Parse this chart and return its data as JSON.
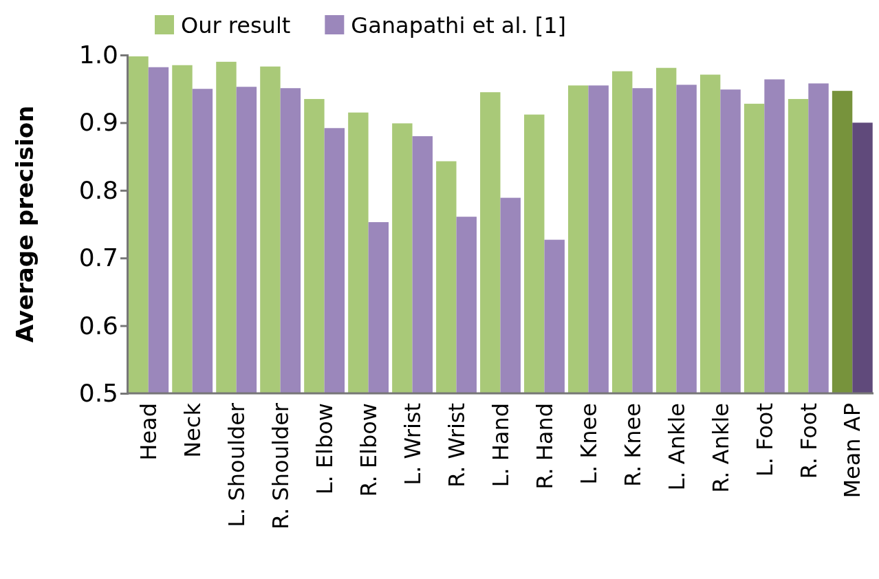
{
  "chart_data": {
    "type": "bar",
    "ylabel": "Average precision",
    "categories": [
      "Head",
      "Neck",
      "L. Shoulder",
      "R. Shoulder",
      "L. Elbow",
      "R. Elbow",
      "L. Wrist",
      "R. Wrist",
      "L. Hand",
      "R. Hand",
      "L. Knee",
      "R. Knee",
      "L. Ankle",
      "R. Ankle",
      "L. Foot",
      "R. Foot",
      "Mean AP"
    ],
    "series": [
      {
        "name": "Our result",
        "color": "#a9c978",
        "colors": [
          "#a9c978",
          "#a9c978",
          "#a9c978",
          "#a9c978",
          "#a9c978",
          "#a9c978",
          "#a9c978",
          "#a9c978",
          "#a9c978",
          "#a9c978",
          "#a9c978",
          "#a9c978",
          "#a9c978",
          "#a9c978",
          "#a9c978",
          "#a9c978",
          "#77933c"
        ],
        "values": [
          0.998,
          0.985,
          0.99,
          0.983,
          0.935,
          0.915,
          0.899,
          0.843,
          0.945,
          0.912,
          0.955,
          0.976,
          0.981,
          0.971,
          0.928,
          0.935,
          0.947
        ]
      },
      {
        "name": "Ganapathi et al. [1]",
        "color": "#9b87bb",
        "colors": [
          "#9b87bb",
          "#9b87bb",
          "#9b87bb",
          "#9b87bb",
          "#9b87bb",
          "#9b87bb",
          "#9b87bb",
          "#9b87bb",
          "#9b87bb",
          "#9b87bb",
          "#9b87bb",
          "#9b87bb",
          "#9b87bb",
          "#9b87bb",
          "#9b87bb",
          "#9b87bb",
          "#604a7b"
        ],
        "values": [
          0.982,
          0.95,
          0.953,
          0.951,
          0.892,
          0.753,
          0.88,
          0.761,
          0.789,
          0.727,
          0.955,
          0.951,
          0.956,
          0.949,
          0.964,
          0.958,
          0.9
        ]
      }
    ],
    "ylim": [
      0.5,
      1.0
    ],
    "yticks": [
      {
        "value": 0.5,
        "label": "0.5"
      },
      {
        "value": 0.6,
        "label": "0.6"
      },
      {
        "value": 0.7,
        "label": "0.7"
      },
      {
        "value": 0.8,
        "label": "0.8"
      },
      {
        "value": 0.9,
        "label": "0.9"
      },
      {
        "value": 1.0,
        "label": "1.0"
      }
    ],
    "grid": false,
    "legend": "top"
  }
}
